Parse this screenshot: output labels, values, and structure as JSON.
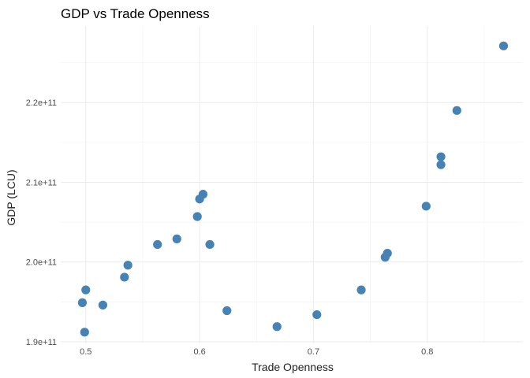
{
  "chart_data": {
    "type": "scatter",
    "title": "GDP vs Trade Openness",
    "xlabel": "Trade Openness",
    "ylabel": "GDP (LCU)",
    "xlim": [
      0.478,
      0.884
    ],
    "ylim": [
      189800000000,
      229600000000
    ],
    "x_ticks": [
      0.5,
      0.6,
      0.7,
      0.8
    ],
    "x_tick_labels": [
      "0.5",
      "0.6",
      "0.7",
      "0.8"
    ],
    "y_ticks": [
      190000000000,
      200000000000,
      210000000000,
      220000000000
    ],
    "y_tick_labels": [
      "1.9e+11",
      "2.0e+11",
      "2.1e+11",
      "2.2e+11"
    ],
    "grid": true,
    "point_color": "#4682B4",
    "points": [
      {
        "x": 0.497,
        "y": 194900000000
      },
      {
        "x": 0.499,
        "y": 191200000000
      },
      {
        "x": 0.5,
        "y": 196500000000
      },
      {
        "x": 0.515,
        "y": 194600000000
      },
      {
        "x": 0.534,
        "y": 198100000000
      },
      {
        "x": 0.537,
        "y": 199600000000
      },
      {
        "x": 0.563,
        "y": 202200000000
      },
      {
        "x": 0.58,
        "y": 202900000000
      },
      {
        "x": 0.598,
        "y": 205700000000
      },
      {
        "x": 0.6,
        "y": 207900000000
      },
      {
        "x": 0.603,
        "y": 208500000000
      },
      {
        "x": 0.609,
        "y": 202200000000
      },
      {
        "x": 0.624,
        "y": 193900000000
      },
      {
        "x": 0.668,
        "y": 191900000000
      },
      {
        "x": 0.703,
        "y": 193400000000
      },
      {
        "x": 0.742,
        "y": 196500000000
      },
      {
        "x": 0.763,
        "y": 200600000000
      },
      {
        "x": 0.765,
        "y": 201100000000
      },
      {
        "x": 0.799,
        "y": 207000000000
      },
      {
        "x": 0.812,
        "y": 212200000000
      },
      {
        "x": 0.812,
        "y": 213200000000
      },
      {
        "x": 0.826,
        "y": 219000000000
      },
      {
        "x": 0.867,
        "y": 227100000000
      }
    ]
  }
}
